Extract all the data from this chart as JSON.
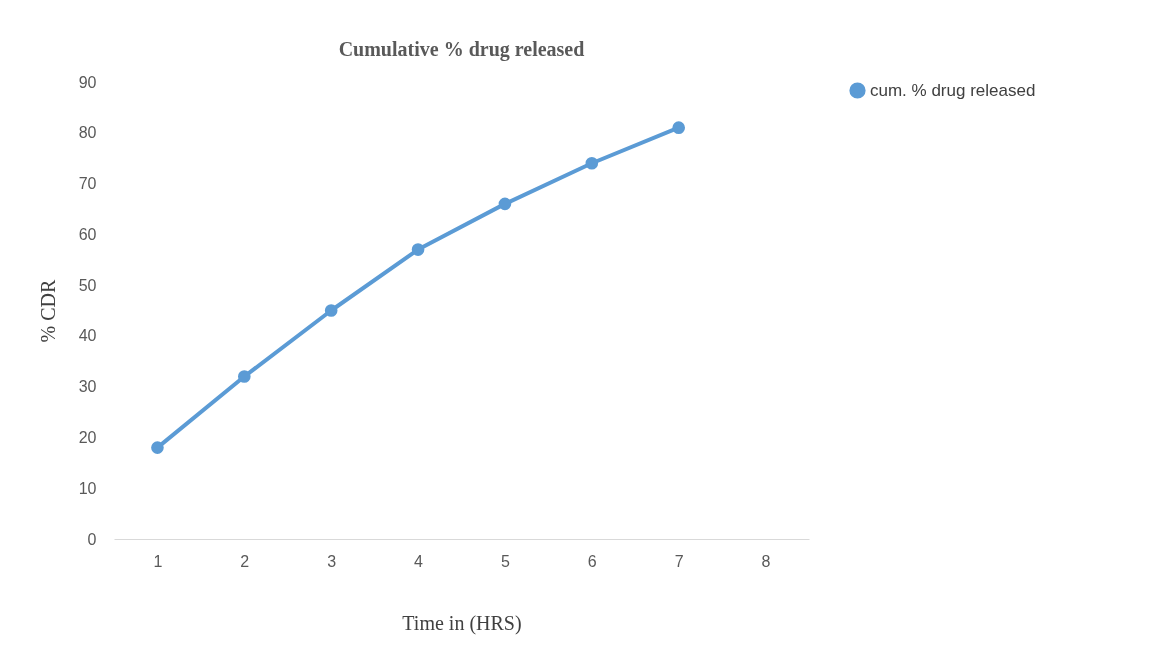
{
  "chart_data": {
    "type": "line",
    "title": "Cumulative % drug released",
    "xlabel": "Time in (HRS)",
    "ylabel": "% CDR",
    "categories": [
      "1",
      "2",
      "3",
      "4",
      "5",
      "6",
      "7",
      "8"
    ],
    "series": [
      {
        "name": "cum. % drug released",
        "color": "#5b9bd5",
        "values": [
          18,
          32,
          45,
          57,
          66,
          74,
          81,
          null
        ]
      }
    ],
    "ylim": [
      0,
      90
    ],
    "yticks": [
      0,
      10,
      20,
      30,
      40,
      50,
      60,
      70,
      80,
      90
    ],
    "grid": false,
    "legend": "right",
    "marker": "circle",
    "line_style": "solid"
  }
}
